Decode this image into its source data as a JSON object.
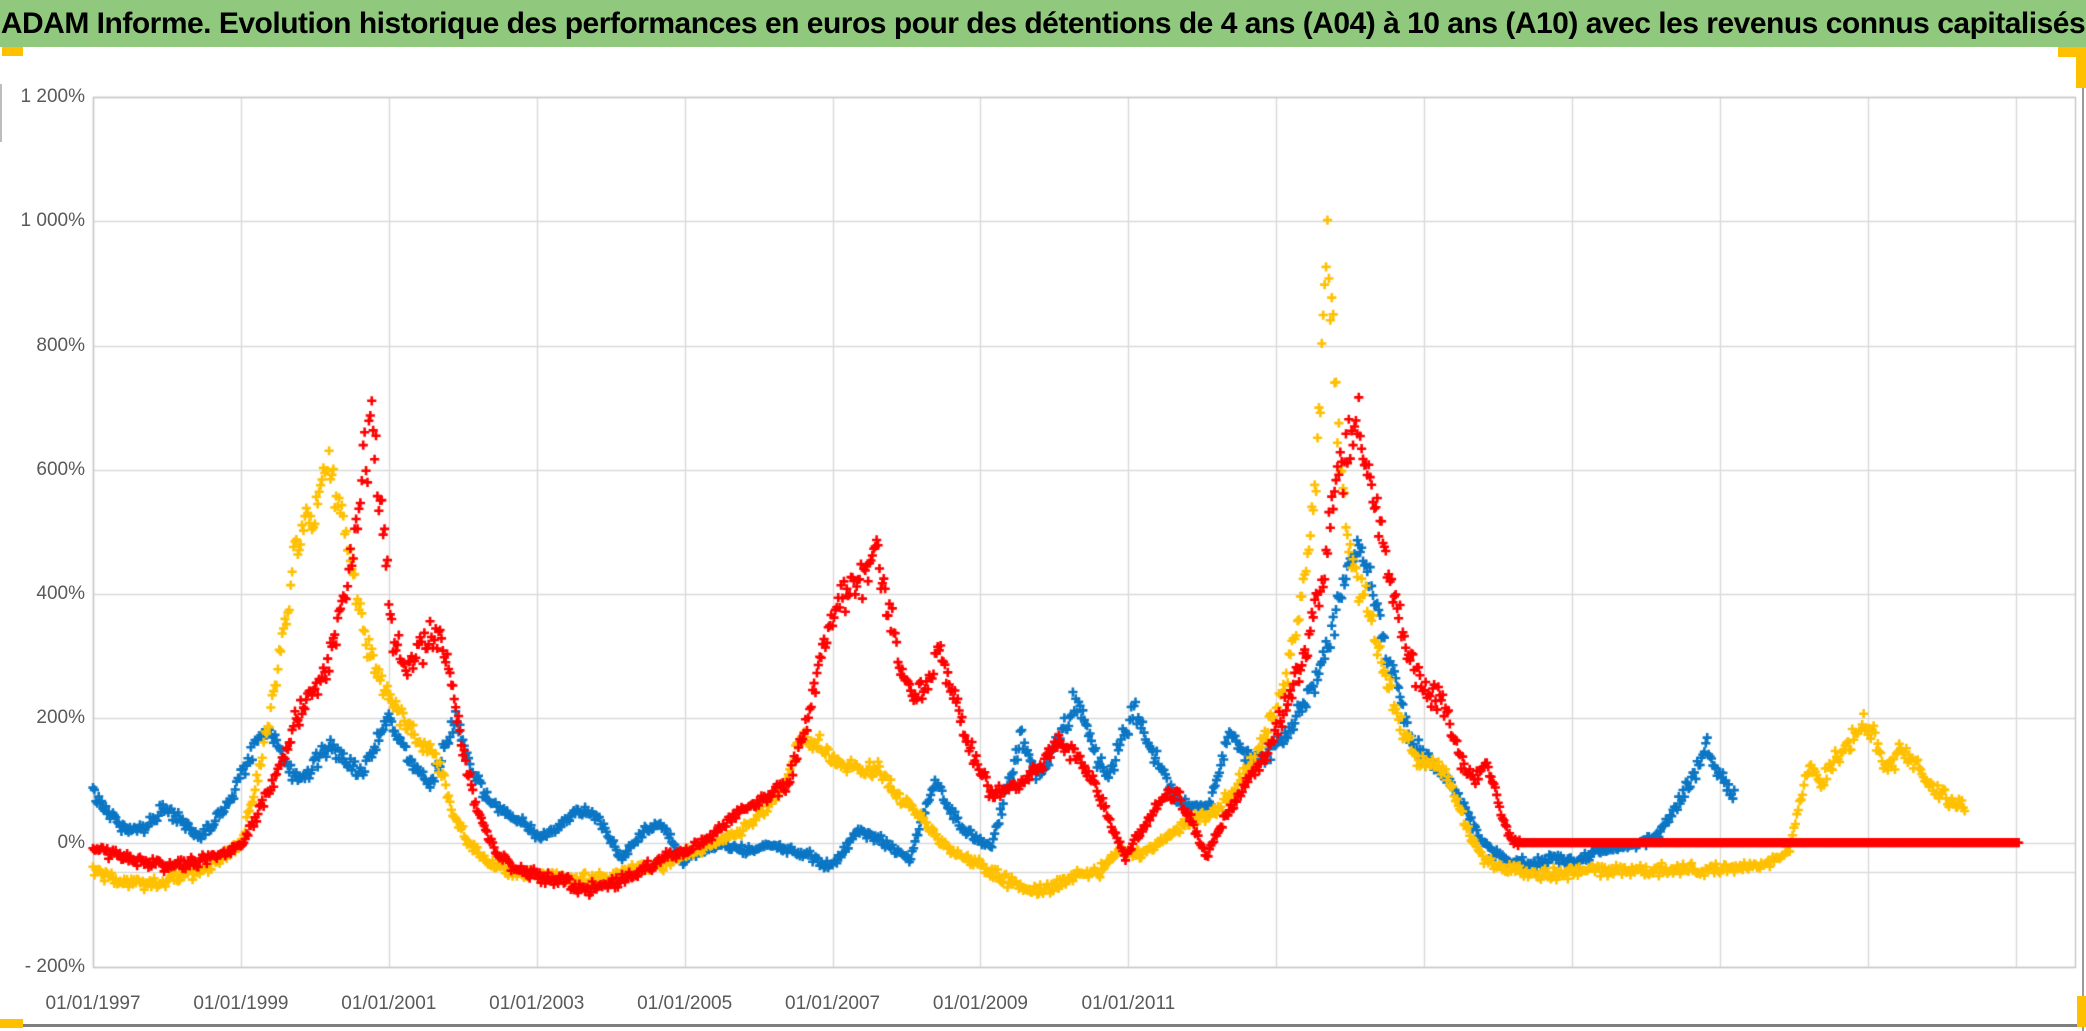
{
  "header": {
    "title": "ADAM Informe. Evolution historique des performances en euros pour des détentions de 4 ans (A04) à 10 ans (A10) avec les revenus connus capitalisés",
    "background_color": "#90C97D",
    "text_color": "#000000"
  },
  "decorations": {
    "accent_yellow": "#FFC000",
    "bottom_rule_color": "#7F7F7F",
    "edge_line_color": "#9A9A9A",
    "sliver_color": "#BDBDBD"
  },
  "chart_data": {
    "type": "scatter",
    "marker": "plus",
    "legend": "none",
    "grid": true,
    "gridline_color": "#D9D9D9",
    "border_color": "#C6C6C6",
    "x_axis": {
      "labels": [
        "01/01/1997",
        "01/01/1999",
        "01/01/2001",
        "01/01/2003",
        "01/01/2005",
        "01/01/2007",
        "01/01/2009",
        "01/01/2011"
      ],
      "label_years": [
        1997,
        1999,
        2001,
        2003,
        2005,
        2007,
        2009,
        2011
      ],
      "gridline_years": [
        1997,
        1999,
        2001,
        2003,
        2005,
        2007,
        2009,
        2011,
        2013,
        2015,
        2017,
        2019,
        2021,
        2023
      ],
      "range": [
        1997,
        2023.8
      ]
    },
    "y_axis": {
      "labels": [
        "1 200%",
        "1 000%",
        "800%",
        "600%",
        "400%",
        "200%",
        "0%",
        "- 200%"
      ],
      "values": [
        1200,
        1000,
        800,
        600,
        400,
        200,
        0,
        -200
      ],
      "range": [
        -200,
        1200
      ],
      "unit": "%",
      "extra_gridline_value": -47
    },
    "series": [
      {
        "name": "blue-series",
        "color": "#0B76C4",
        "end_year": 2019.2,
        "anchors": [
          [
            1997.0,
            80
          ],
          [
            1997.2,
            50
          ],
          [
            1997.45,
            20
          ],
          [
            1997.7,
            25
          ],
          [
            1997.95,
            55
          ],
          [
            1998.2,
            35
          ],
          [
            1998.45,
            8
          ],
          [
            1998.65,
            35
          ],
          [
            1998.9,
            80
          ],
          [
            1999.1,
            140
          ],
          [
            1999.35,
            185
          ],
          [
            1999.5,
            160
          ],
          [
            1999.65,
            115
          ],
          [
            1999.85,
            105
          ],
          [
            2000.05,
            135
          ],
          [
            2000.25,
            160
          ],
          [
            2000.45,
            120
          ],
          [
            2000.65,
            115
          ],
          [
            2000.85,
            165
          ],
          [
            2001.0,
            205
          ],
          [
            2001.15,
            165
          ],
          [
            2001.35,
            115
          ],
          [
            2001.55,
            95
          ],
          [
            2001.75,
            150
          ],
          [
            2001.9,
            195
          ],
          [
            2002.1,
            120
          ],
          [
            2002.3,
            75
          ],
          [
            2002.55,
            48
          ],
          [
            2002.8,
            35
          ],
          [
            2003.05,
            5
          ],
          [
            2003.3,
            25
          ],
          [
            2003.55,
            50
          ],
          [
            2003.75,
            50
          ],
          [
            2003.95,
            15
          ],
          [
            2004.15,
            -25
          ],
          [
            2004.35,
            5
          ],
          [
            2004.55,
            30
          ],
          [
            2004.75,
            20
          ],
          [
            2004.95,
            -30
          ],
          [
            2005.2,
            -12
          ],
          [
            2005.5,
            -5
          ],
          [
            2005.8,
            -12
          ],
          [
            2006.1,
            -5
          ],
          [
            2006.4,
            -12
          ],
          [
            2006.7,
            -20
          ],
          [
            2006.95,
            -40
          ],
          [
            2007.15,
            -15
          ],
          [
            2007.35,
            20
          ],
          [
            2007.6,
            8
          ],
          [
            2007.85,
            -12
          ],
          [
            2008.05,
            -28
          ],
          [
            2008.25,
            55
          ],
          [
            2008.4,
            100
          ],
          [
            2008.55,
            55
          ],
          [
            2008.75,
            28
          ],
          [
            2008.95,
            5
          ],
          [
            2009.15,
            -8
          ],
          [
            2009.35,
            85
          ],
          [
            2009.55,
            170
          ],
          [
            2009.7,
            120
          ],
          [
            2009.85,
            108
          ],
          [
            2010.05,
            165
          ],
          [
            2010.28,
            232
          ],
          [
            2010.45,
            185
          ],
          [
            2010.6,
            128
          ],
          [
            2010.75,
            108
          ],
          [
            2010.95,
            185
          ],
          [
            2011.1,
            210
          ],
          [
            2011.25,
            170
          ],
          [
            2011.45,
            115
          ],
          [
            2011.65,
            70
          ],
          [
            2011.85,
            58
          ],
          [
            2012.05,
            58
          ],
          [
            2012.2,
            95
          ],
          [
            2012.35,
            178
          ],
          [
            2012.55,
            148
          ],
          [
            2012.75,
            135
          ],
          [
            2012.95,
            152
          ],
          [
            2013.15,
            175
          ],
          [
            2013.35,
            215
          ],
          [
            2013.55,
            260
          ],
          [
            2013.75,
            345
          ],
          [
            2013.95,
            440
          ],
          [
            2014.1,
            500
          ],
          [
            2014.25,
            430
          ],
          [
            2014.45,
            330
          ],
          [
            2014.65,
            245
          ],
          [
            2014.85,
            160
          ],
          [
            2015.05,
            130
          ],
          [
            2015.3,
            108
          ],
          [
            2015.55,
            55
          ],
          [
            2015.75,
            8
          ],
          [
            2015.95,
            -18
          ],
          [
            2016.15,
            -30
          ],
          [
            2016.45,
            -35
          ],
          [
            2016.75,
            -25
          ],
          [
            2017.05,
            -30
          ],
          [
            2017.35,
            -15
          ],
          [
            2017.65,
            -8
          ],
          [
            2017.95,
            0
          ],
          [
            2018.15,
            12
          ],
          [
            2018.35,
            45
          ],
          [
            2018.55,
            90
          ],
          [
            2018.72,
            125
          ],
          [
            2018.82,
            160
          ],
          [
            2018.95,
            118
          ],
          [
            2019.1,
            88
          ],
          [
            2019.2,
            72
          ]
        ]
      },
      {
        "name": "gold-series",
        "color": "#FFC000",
        "end_year": 2022.32,
        "anchors": [
          [
            1997.0,
            -45
          ],
          [
            1997.35,
            -60
          ],
          [
            1997.7,
            -65
          ],
          [
            1998.05,
            -58
          ],
          [
            1998.4,
            -48
          ],
          [
            1998.7,
            -30
          ],
          [
            1999.0,
            0
          ],
          [
            1999.2,
            90
          ],
          [
            1999.4,
            210
          ],
          [
            1999.6,
            360
          ],
          [
            1999.8,
            520
          ],
          [
            1999.95,
            510
          ],
          [
            2000.15,
            600
          ],
          [
            2000.3,
            560
          ],
          [
            2000.45,
            470
          ],
          [
            2000.6,
            360
          ],
          [
            2000.8,
            290
          ],
          [
            2001.0,
            235
          ],
          [
            2001.2,
            200
          ],
          [
            2001.45,
            165
          ],
          [
            2001.65,
            135
          ],
          [
            2001.85,
            55
          ],
          [
            2002.05,
            5
          ],
          [
            2002.3,
            -28
          ],
          [
            2002.6,
            -45
          ],
          [
            2002.9,
            -50
          ],
          [
            2003.35,
            -55
          ],
          [
            2003.85,
            -60
          ],
          [
            2004.3,
            -42
          ],
          [
            2004.7,
            -36
          ],
          [
            2005.0,
            -18
          ],
          [
            2005.4,
            -2
          ],
          [
            2005.75,
            18
          ],
          [
            2006.05,
            48
          ],
          [
            2006.35,
            95
          ],
          [
            2006.6,
            175
          ],
          [
            2006.8,
            160
          ],
          [
            2007.05,
            130
          ],
          [
            2007.35,
            118
          ],
          [
            2007.6,
            122
          ],
          [
            2007.9,
            72
          ],
          [
            2008.2,
            40
          ],
          [
            2008.5,
            -5
          ],
          [
            2008.75,
            -20
          ],
          [
            2009.0,
            -38
          ],
          [
            2009.3,
            -58
          ],
          [
            2009.65,
            -82
          ],
          [
            2010.0,
            -70
          ],
          [
            2010.3,
            -52
          ],
          [
            2010.6,
            -46
          ],
          [
            2010.9,
            -12
          ],
          [
            2011.2,
            -18
          ],
          [
            2011.5,
            8
          ],
          [
            2011.8,
            35
          ],
          [
            2012.1,
            42
          ],
          [
            2012.4,
            80
          ],
          [
            2012.7,
            132
          ],
          [
            2012.95,
            195
          ],
          [
            2013.2,
            295
          ],
          [
            2013.4,
            430
          ],
          [
            2013.55,
            600
          ],
          [
            2013.65,
            860
          ],
          [
            2013.7,
            1000
          ],
          [
            2013.75,
            840
          ],
          [
            2013.85,
            640
          ],
          [
            2013.95,
            500
          ],
          [
            2014.1,
            430
          ],
          [
            2014.3,
            345
          ],
          [
            2014.5,
            255
          ],
          [
            2014.7,
            185
          ],
          [
            2014.9,
            135
          ],
          [
            2015.1,
            125
          ],
          [
            2015.3,
            112
          ],
          [
            2015.55,
            30
          ],
          [
            2015.8,
            -25
          ],
          [
            2016.1,
            -42
          ],
          [
            2016.5,
            -52
          ],
          [
            2016.9,
            -50
          ],
          [
            2017.3,
            -45
          ],
          [
            2017.7,
            -42
          ],
          [
            2018.1,
            -45
          ],
          [
            2018.5,
            -42
          ],
          [
            2018.9,
            -45
          ],
          [
            2019.3,
            -40
          ],
          [
            2019.7,
            -32
          ],
          [
            2019.95,
            -10
          ],
          [
            2020.1,
            80
          ],
          [
            2020.22,
            125
          ],
          [
            2020.35,
            95
          ],
          [
            2020.5,
            125
          ],
          [
            2020.65,
            145
          ],
          [
            2020.8,
            165
          ],
          [
            2020.95,
            192
          ],
          [
            2021.1,
            172
          ],
          [
            2021.25,
            118
          ],
          [
            2021.45,
            148
          ],
          [
            2021.6,
            128
          ],
          [
            2021.75,
            108
          ],
          [
            2021.9,
            88
          ],
          [
            2022.05,
            72
          ],
          [
            2022.2,
            62
          ],
          [
            2022.32,
            58
          ]
        ]
      },
      {
        "name": "red-series",
        "color": "#FF0000",
        "end_year": 2023.05,
        "flat_after": 2016.3,
        "anchors": [
          [
            1997.0,
            -10
          ],
          [
            1997.3,
            -20
          ],
          [
            1997.6,
            -28
          ],
          [
            1998.0,
            -38
          ],
          [
            1998.4,
            -32
          ],
          [
            1998.7,
            -20
          ],
          [
            1999.0,
            -5
          ],
          [
            1999.25,
            50
          ],
          [
            1999.5,
            120
          ],
          [
            1999.75,
            200
          ],
          [
            2000.0,
            255
          ],
          [
            2000.2,
            300
          ],
          [
            2000.45,
            430
          ],
          [
            2000.65,
            600
          ],
          [
            2000.78,
            665
          ],
          [
            2000.9,
            520
          ],
          [
            2001.05,
            340
          ],
          [
            2001.25,
            280
          ],
          [
            2001.5,
            320
          ],
          [
            2001.7,
            340
          ],
          [
            2001.85,
            260
          ],
          [
            2002.0,
            150
          ],
          [
            2002.2,
            50
          ],
          [
            2002.45,
            -15
          ],
          [
            2002.7,
            -40
          ],
          [
            2003.0,
            -52
          ],
          [
            2003.4,
            -65
          ],
          [
            2003.7,
            -75
          ],
          [
            2004.0,
            -68
          ],
          [
            2004.4,
            -45
          ],
          [
            2004.8,
            -20
          ],
          [
            2005.1,
            -8
          ],
          [
            2005.45,
            18
          ],
          [
            2005.75,
            50
          ],
          [
            2006.1,
            70
          ],
          [
            2006.4,
            95
          ],
          [
            2006.65,
            200
          ],
          [
            2006.9,
            330
          ],
          [
            2007.15,
            400
          ],
          [
            2007.4,
            430
          ],
          [
            2007.6,
            485
          ],
          [
            2007.75,
            380
          ],
          [
            2007.95,
            265
          ],
          [
            2008.2,
            235
          ],
          [
            2008.45,
            305
          ],
          [
            2008.65,
            235
          ],
          [
            2008.9,
            140
          ],
          [
            2009.15,
            75
          ],
          [
            2009.5,
            90
          ],
          [
            2009.8,
            125
          ],
          [
            2010.05,
            160
          ],
          [
            2010.3,
            140
          ],
          [
            2010.55,
            90
          ],
          [
            2010.75,
            35
          ],
          [
            2010.95,
            -22
          ],
          [
            2011.15,
            15
          ],
          [
            2011.45,
            70
          ],
          [
            2011.65,
            80
          ],
          [
            2011.85,
            35
          ],
          [
            2012.05,
            -22
          ],
          [
            2012.3,
            40
          ],
          [
            2012.6,
            95
          ],
          [
            2012.9,
            150
          ],
          [
            2013.15,
            230
          ],
          [
            2013.4,
            310
          ],
          [
            2013.6,
            420
          ],
          [
            2013.8,
            560
          ],
          [
            2014.0,
            655
          ],
          [
            2014.12,
            675
          ],
          [
            2014.3,
            555
          ],
          [
            2014.55,
            420
          ],
          [
            2014.8,
            295
          ],
          [
            2015.05,
            245
          ],
          [
            2015.3,
            215
          ],
          [
            2015.5,
            125
          ],
          [
            2015.7,
            100
          ],
          [
            2015.87,
            130
          ],
          [
            2016.0,
            62
          ],
          [
            2016.15,
            10
          ],
          [
            2016.3,
            0
          ],
          [
            2023.05,
            0
          ]
        ]
      }
    ]
  }
}
